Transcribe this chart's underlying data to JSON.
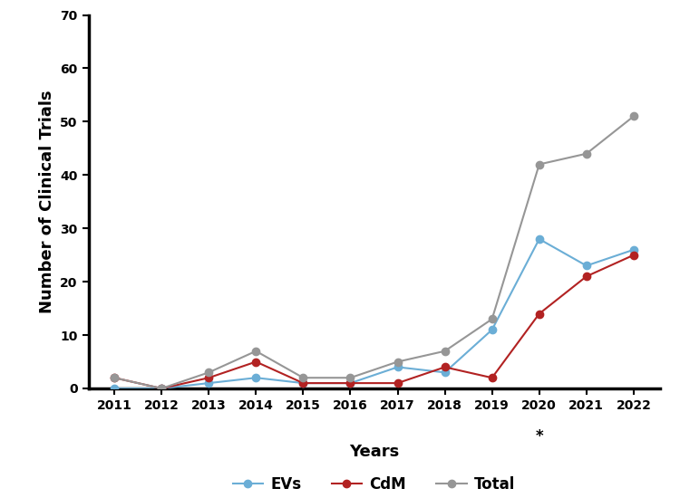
{
  "years": [
    2011,
    2012,
    2013,
    2014,
    2015,
    2016,
    2017,
    2018,
    2019,
    2020,
    2021,
    2022
  ],
  "EVs": [
    0,
    0,
    1,
    2,
    1,
    1,
    4,
    3,
    11,
    28,
    23,
    26
  ],
  "CdM": [
    2,
    0,
    2,
    5,
    1,
    1,
    1,
    4,
    2,
    14,
    21,
    25
  ],
  "Total": [
    2,
    0,
    3,
    7,
    2,
    2,
    5,
    7,
    13,
    42,
    44,
    51
  ],
  "EVs_color": "#6baed6",
  "CdM_color": "#b22222",
  "Total_color": "#969696",
  "xlabel": "Years",
  "ylabel": "Number of Clinical Trials",
  "ylim": [
    0,
    70
  ],
  "yticks": [
    0,
    10,
    20,
    30,
    40,
    50,
    60,
    70
  ],
  "star_year": 2020,
  "star_label": "*",
  "legend_labels": [
    "EVs",
    "CdM",
    "Total"
  ],
  "marker": "o",
  "markersize": 6,
  "linewidth": 1.5,
  "spine_linewidth": 2.5,
  "background_color": "#ffffff"
}
